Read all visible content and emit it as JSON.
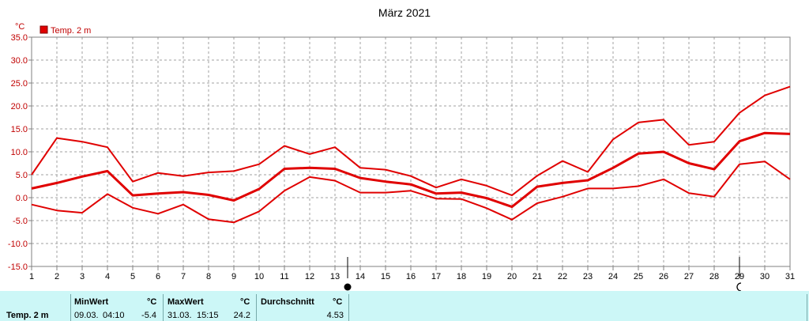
{
  "chart_data": {
    "type": "line",
    "title": "März 2021",
    "ylabel": "°C",
    "legend": "Temp. 2 m",
    "legend_placement": "top-left",
    "grid": true,
    "ylim": [
      -15,
      35
    ],
    "yticks": [
      "35.0",
      "30.0",
      "25.0",
      "20.0",
      "15.0",
      "10.0",
      "5.0",
      "0.0",
      "-5.0",
      "-10.0",
      "-15.0"
    ],
    "x": [
      1,
      2,
      3,
      4,
      5,
      6,
      7,
      8,
      9,
      10,
      11,
      12,
      13,
      14,
      15,
      16,
      17,
      18,
      19,
      20,
      21,
      22,
      23,
      24,
      25,
      26,
      27,
      28,
      29,
      30,
      31
    ],
    "color": "#e00000",
    "series": [
      {
        "values": [
          5.0,
          13.0,
          12.2,
          11.0,
          3.5,
          5.4,
          4.7,
          5.5,
          5.8,
          7.3,
          11.3,
          9.5,
          11.0,
          6.5,
          6.1,
          4.7,
          2.2,
          4.0,
          2.6,
          0.5,
          4.8,
          8.0,
          5.6,
          12.7,
          16.4,
          17.0,
          11.5,
          12.2,
          18.5,
          22.3,
          24.2
        ],
        "width": 2
      },
      {
        "values": [
          2.0,
          3.2,
          4.6,
          5.8,
          0.5,
          0.9,
          1.2,
          0.6,
          -0.6,
          1.9,
          6.3,
          6.5,
          6.3,
          4.3,
          3.5,
          2.9,
          0.9,
          1.1,
          -0.1,
          -2.0,
          2.4,
          3.2,
          3.8,
          6.5,
          9.6,
          10.0,
          7.5,
          6.2,
          12.3,
          14.1,
          13.9
        ],
        "width": 3
      },
      {
        "values": [
          -1.5,
          -2.8,
          -3.3,
          0.8,
          -2.2,
          -3.5,
          -1.5,
          -4.7,
          -5.4,
          -3.0,
          1.5,
          4.5,
          3.7,
          1.1,
          1.1,
          1.5,
          -0.2,
          -0.3,
          -2.3,
          -4.8,
          -1.2,
          0.2,
          2.0,
          2.0,
          2.5,
          4.0,
          1.0,
          0.2,
          7.3,
          7.9,
          4.0
        ],
        "width": 2
      }
    ],
    "markers": [
      {
        "day": 13.5,
        "symbol": "full-moon"
      },
      {
        "day": 29,
        "symbol": "new-moon"
      }
    ]
  },
  "stats": {
    "label": "Temp. 2 m",
    "min_title": "MinWert",
    "min_unit": "°C",
    "min_date": "09.03.",
    "min_time": "04:10",
    "min_value": "-5.4",
    "max_title": "MaxWert",
    "max_unit": "°C",
    "max_date": "31.03.",
    "max_time": "15:15",
    "max_value": "24.2",
    "avg_title": "Durchschnitt",
    "avg_unit": "°C",
    "avg_value": "4.53"
  }
}
